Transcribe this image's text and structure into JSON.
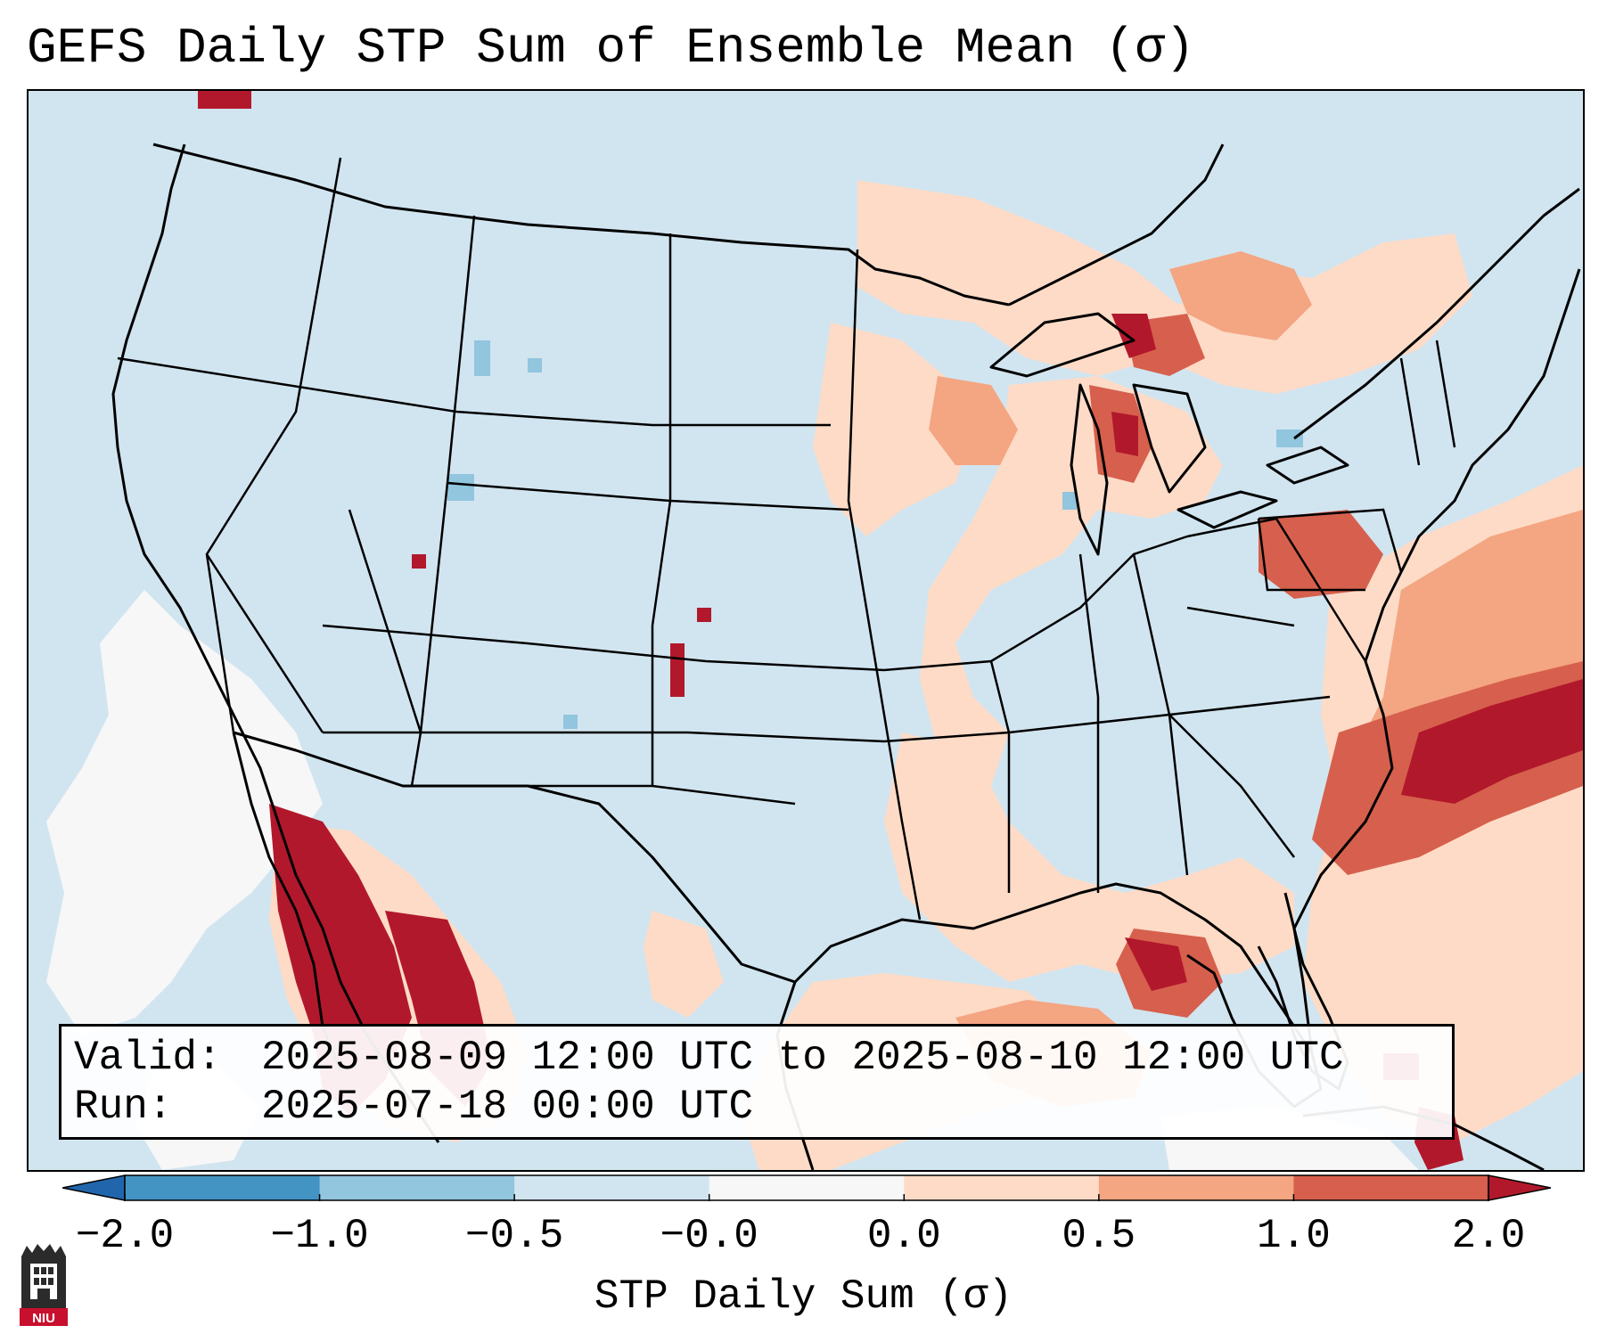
{
  "title": "GEFS Daily STP Sum of Ensemble Mean (σ)",
  "valid_box": {
    "valid_label": "Valid:",
    "valid_value": "2025-08-09 12:00 UTC to 2025-08-10 12:00 UTC",
    "run_label": "Run:",
    "run_value": "2025-07-18 00:00 UTC"
  },
  "colorbar": {
    "label": "STP Daily Sum (σ)",
    "ticks": [
      "−2.0",
      "−1.0",
      "−0.5",
      "−0.0",
      "0.0",
      "0.5",
      "1.0",
      "2.0"
    ],
    "bins": [
      {
        "from": -2.0,
        "to": -1.0,
        "color": "#4393c3"
      },
      {
        "from": -1.0,
        "to": -0.5,
        "color": "#92c5de"
      },
      {
        "from": -0.5,
        "to": -0.0,
        "color": "#d1e5f0"
      },
      {
        "from": -0.0,
        "to": 0.0,
        "color": "#f7f7f7"
      },
      {
        "from": 0.0,
        "to": 0.5,
        "color": "#fddbc7"
      },
      {
        "from": 0.5,
        "to": 1.0,
        "color": "#f4a582"
      },
      {
        "from": 1.0,
        "to": 2.0,
        "color": "#d6604d"
      }
    ],
    "under_color": "#2166ac",
    "over_color": "#b2182b"
  },
  "logo": {
    "text": "NIU",
    "color": "#c8102e"
  }
}
